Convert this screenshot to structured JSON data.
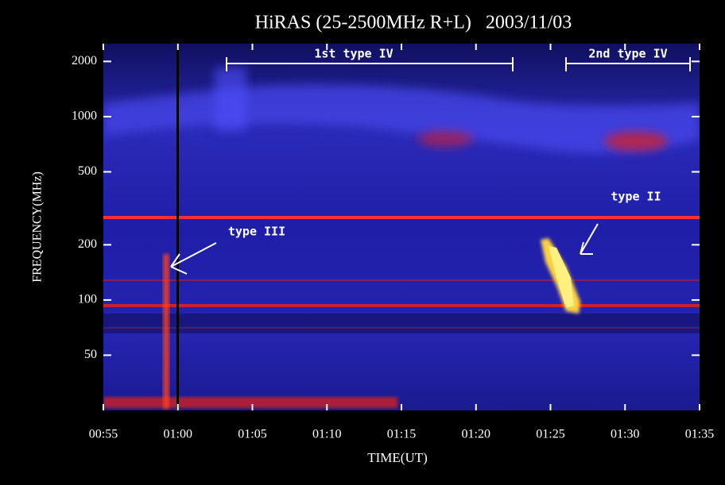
{
  "chart_data": {
    "type": "spectrogram",
    "title": "HiRAS (25-2500MHz R+L)   2003/11/03",
    "x_label": "TIME(UT)",
    "y_label": "FREQUENCY(MHz)",
    "xlim": [
      "00:55",
      "01:35"
    ],
    "xticks": [
      "00:55",
      "01:00",
      "01:05",
      "01:10",
      "01:15",
      "01:20",
      "01:25",
      "01:30",
      "01:35"
    ],
    "ylim": [
      25,
      2500
    ],
    "yticks": [
      50,
      100,
      200,
      500,
      1000,
      2000
    ],
    "log_y": true,
    "annotations": [
      "1st type IV",
      "2nd type IV",
      "type II",
      "type III"
    ]
  }
}
